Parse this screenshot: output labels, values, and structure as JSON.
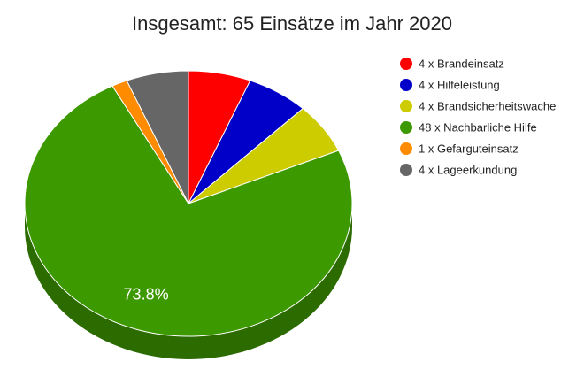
{
  "chart_data": {
    "type": "pie",
    "title": "Insgesamt: 65 Einsätze im Jahr 2020",
    "categories": [
      "4 x Brandeinsatz",
      "4 x Hilfeleistung",
      "4 x Brandsicherheitswache",
      "48 x Nachbarliche Hilfe",
      "1 x Gefarguteinsatz",
      "4 x Lageerkundung"
    ],
    "values": [
      6.154,
      6.154,
      6.154,
      73.846,
      1.538,
      6.154
    ],
    "value_labels": [
      null,
      null,
      null,
      "73.8%",
      null,
      null
    ],
    "colors": [
      "#ff0000",
      "#0000c8",
      "#cccc00",
      "#3d9900",
      "#ff8c00",
      "#666666"
    ],
    "legend": "right"
  }
}
